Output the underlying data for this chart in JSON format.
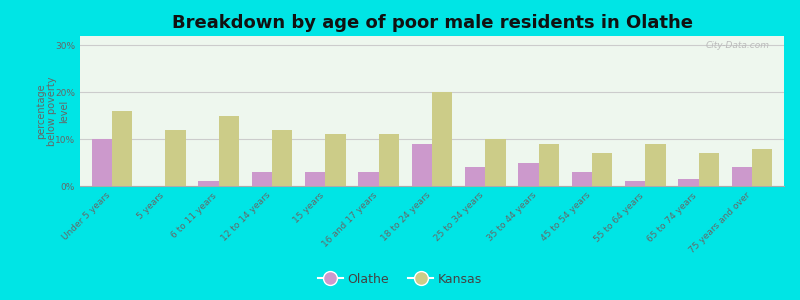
{
  "title": "Breakdown by age of poor male residents in Olathe",
  "ylabel": "percentage\nbelow poverty\nlevel",
  "categories": [
    "Under 5 years",
    "5 years",
    "6 to 11 years",
    "12 to 14 years",
    "15 years",
    "16 and 17 years",
    "18 to 24 years",
    "25 to 34 years",
    "35 to 44 years",
    "45 to 54 years",
    "55 to 64 years",
    "65 to 74 years",
    "75 years and over"
  ],
  "olathe_values": [
    10.0,
    0.0,
    1.0,
    3.0,
    3.0,
    3.0,
    9.0,
    4.0,
    5.0,
    3.0,
    1.0,
    1.5,
    4.0
  ],
  "kansas_values": [
    16.0,
    12.0,
    15.0,
    12.0,
    11.0,
    11.0,
    20.0,
    10.0,
    9.0,
    7.0,
    9.0,
    7.0,
    8.0
  ],
  "olathe_color": "#cc99cc",
  "kansas_color": "#cccc88",
  "plot_bg": "#eef7ee",
  "outer_bg": "#00e5e5",
  "ylim": [
    0,
    32
  ],
  "yticks": [
    0,
    10,
    20,
    30
  ],
  "ytick_labels": [
    "0%",
    "10%",
    "20%",
    "30%"
  ],
  "title_fontsize": 13,
  "axis_label_fontsize": 7,
  "tick_label_fontsize": 6.5,
  "legend_fontsize": 9,
  "bar_width": 0.38
}
